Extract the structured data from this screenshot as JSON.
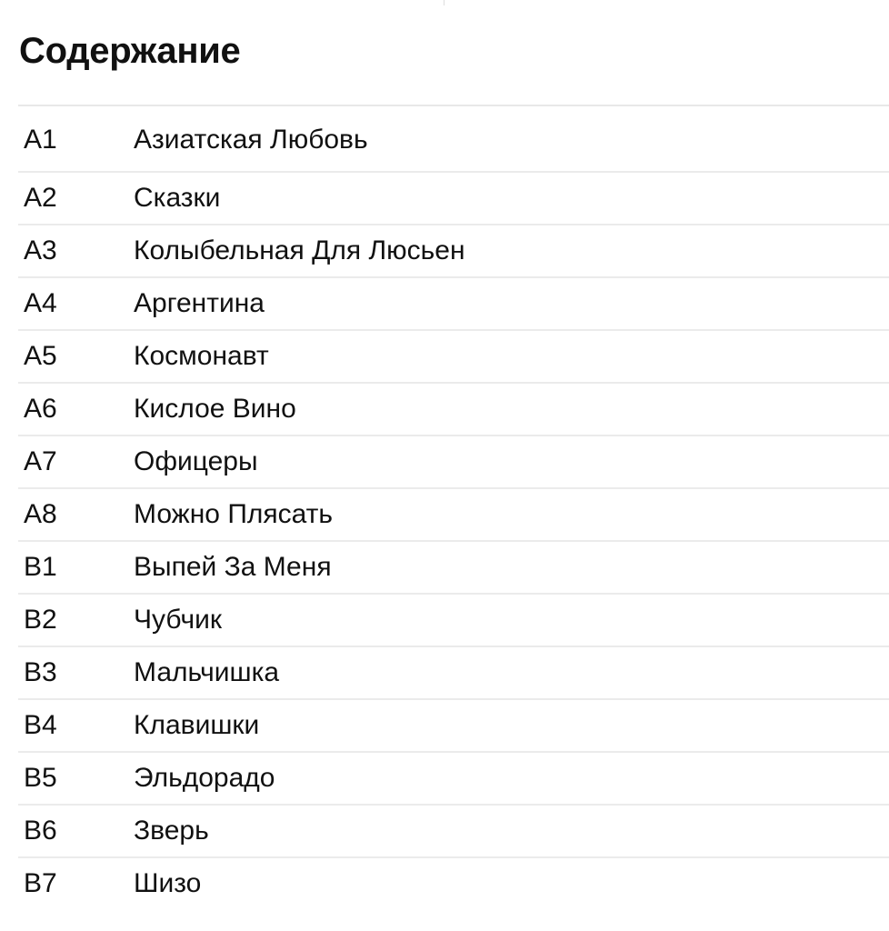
{
  "title": "Содержание",
  "tracks": [
    {
      "code": "A1",
      "name": "Азиатская Любовь"
    },
    {
      "code": "A2",
      "name": "Сказки"
    },
    {
      "code": "A3",
      "name": "Колыбельная Для Люсьен"
    },
    {
      "code": "A4",
      "name": "Аргентина"
    },
    {
      "code": "A5",
      "name": "Космонавт"
    },
    {
      "code": "A6",
      "name": "Кислое Вино"
    },
    {
      "code": "A7",
      "name": "Офицеры"
    },
    {
      "code": "A8",
      "name": "Можно Плясать"
    },
    {
      "code": "B1",
      "name": "Выпей За Меня"
    },
    {
      "code": "B2",
      "name": "Чубчик"
    },
    {
      "code": "B3",
      "name": "Мальчишка"
    },
    {
      "code": "B4",
      "name": "Клавишки"
    },
    {
      "code": "B5",
      "name": "Эльдорадо"
    },
    {
      "code": "B6",
      "name": "Зверь"
    },
    {
      "code": "B7",
      "name": "Шизо"
    }
  ]
}
